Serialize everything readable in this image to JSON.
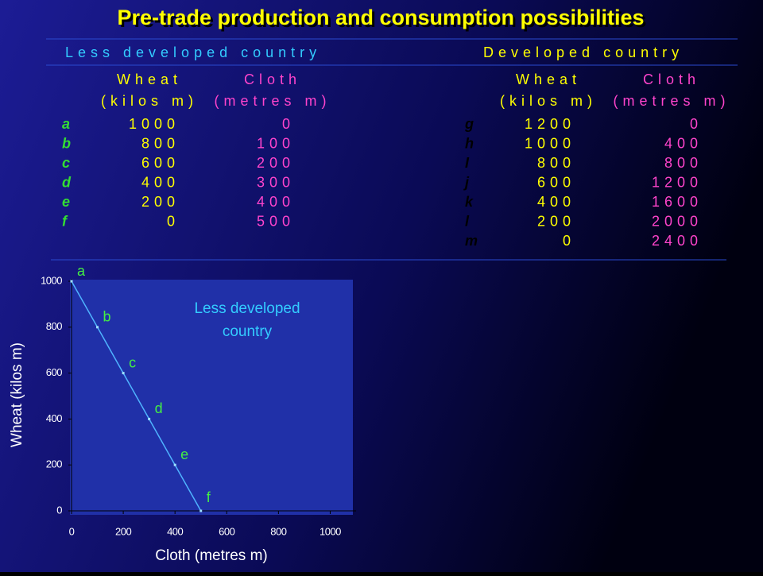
{
  "header": {
    "title": "Pre-trade production and consumption possibilities"
  },
  "tables": [
    {
      "title": "Less developed country",
      "columns": [
        [
          "Wheat",
          "(kilos m)"
        ],
        [
          "Cloth",
          "(metres m)"
        ]
      ],
      "rows": [
        [
          "a",
          "1000",
          "0"
        ],
        [
          "b",
          "800",
          "100"
        ],
        [
          "c",
          "600",
          "200"
        ],
        [
          "d",
          "400",
          "300"
        ],
        [
          "e",
          "200",
          "400"
        ],
        [
          "f",
          "0",
          "500"
        ]
      ]
    },
    {
      "title": "Developed country",
      "columns": [
        [
          "Wheat",
          "(kilos m)"
        ],
        [
          "Cloth",
          "(metres m)"
        ]
      ],
      "rows": [
        [
          "g",
          "1200",
          "0"
        ],
        [
          "h",
          "1000",
          "400"
        ],
        [
          "I",
          "800",
          "800"
        ],
        [
          "j",
          "600",
          "1200"
        ],
        [
          "k",
          "400",
          "1600"
        ],
        [
          "l",
          "200",
          "2000"
        ],
        [
          "m",
          "0",
          "2400"
        ]
      ]
    }
  ],
  "chart_data": {
    "type": "line",
    "x_label": "Cloth (metres m)",
    "y_label": "Wheat (kilos m)",
    "annotation": [
      "Less developed",
      "country"
    ],
    "x": [
      0,
      100,
      200,
      300,
      400,
      500
    ],
    "values": [
      1000,
      800,
      600,
      400,
      200,
      0
    ],
    "point_labels": [
      "a",
      "b",
      "c",
      "d",
      "e",
      "f"
    ],
    "color": "#4fb3ff",
    "xlim": [
      0,
      1100
    ],
    "ylim": [
      0,
      1000
    ],
    "xticks": [
      0,
      200,
      400,
      600,
      800,
      1000
    ],
    "yticks": [
      0,
      200,
      400,
      600,
      800,
      1000
    ],
    "grid": false
  }
}
